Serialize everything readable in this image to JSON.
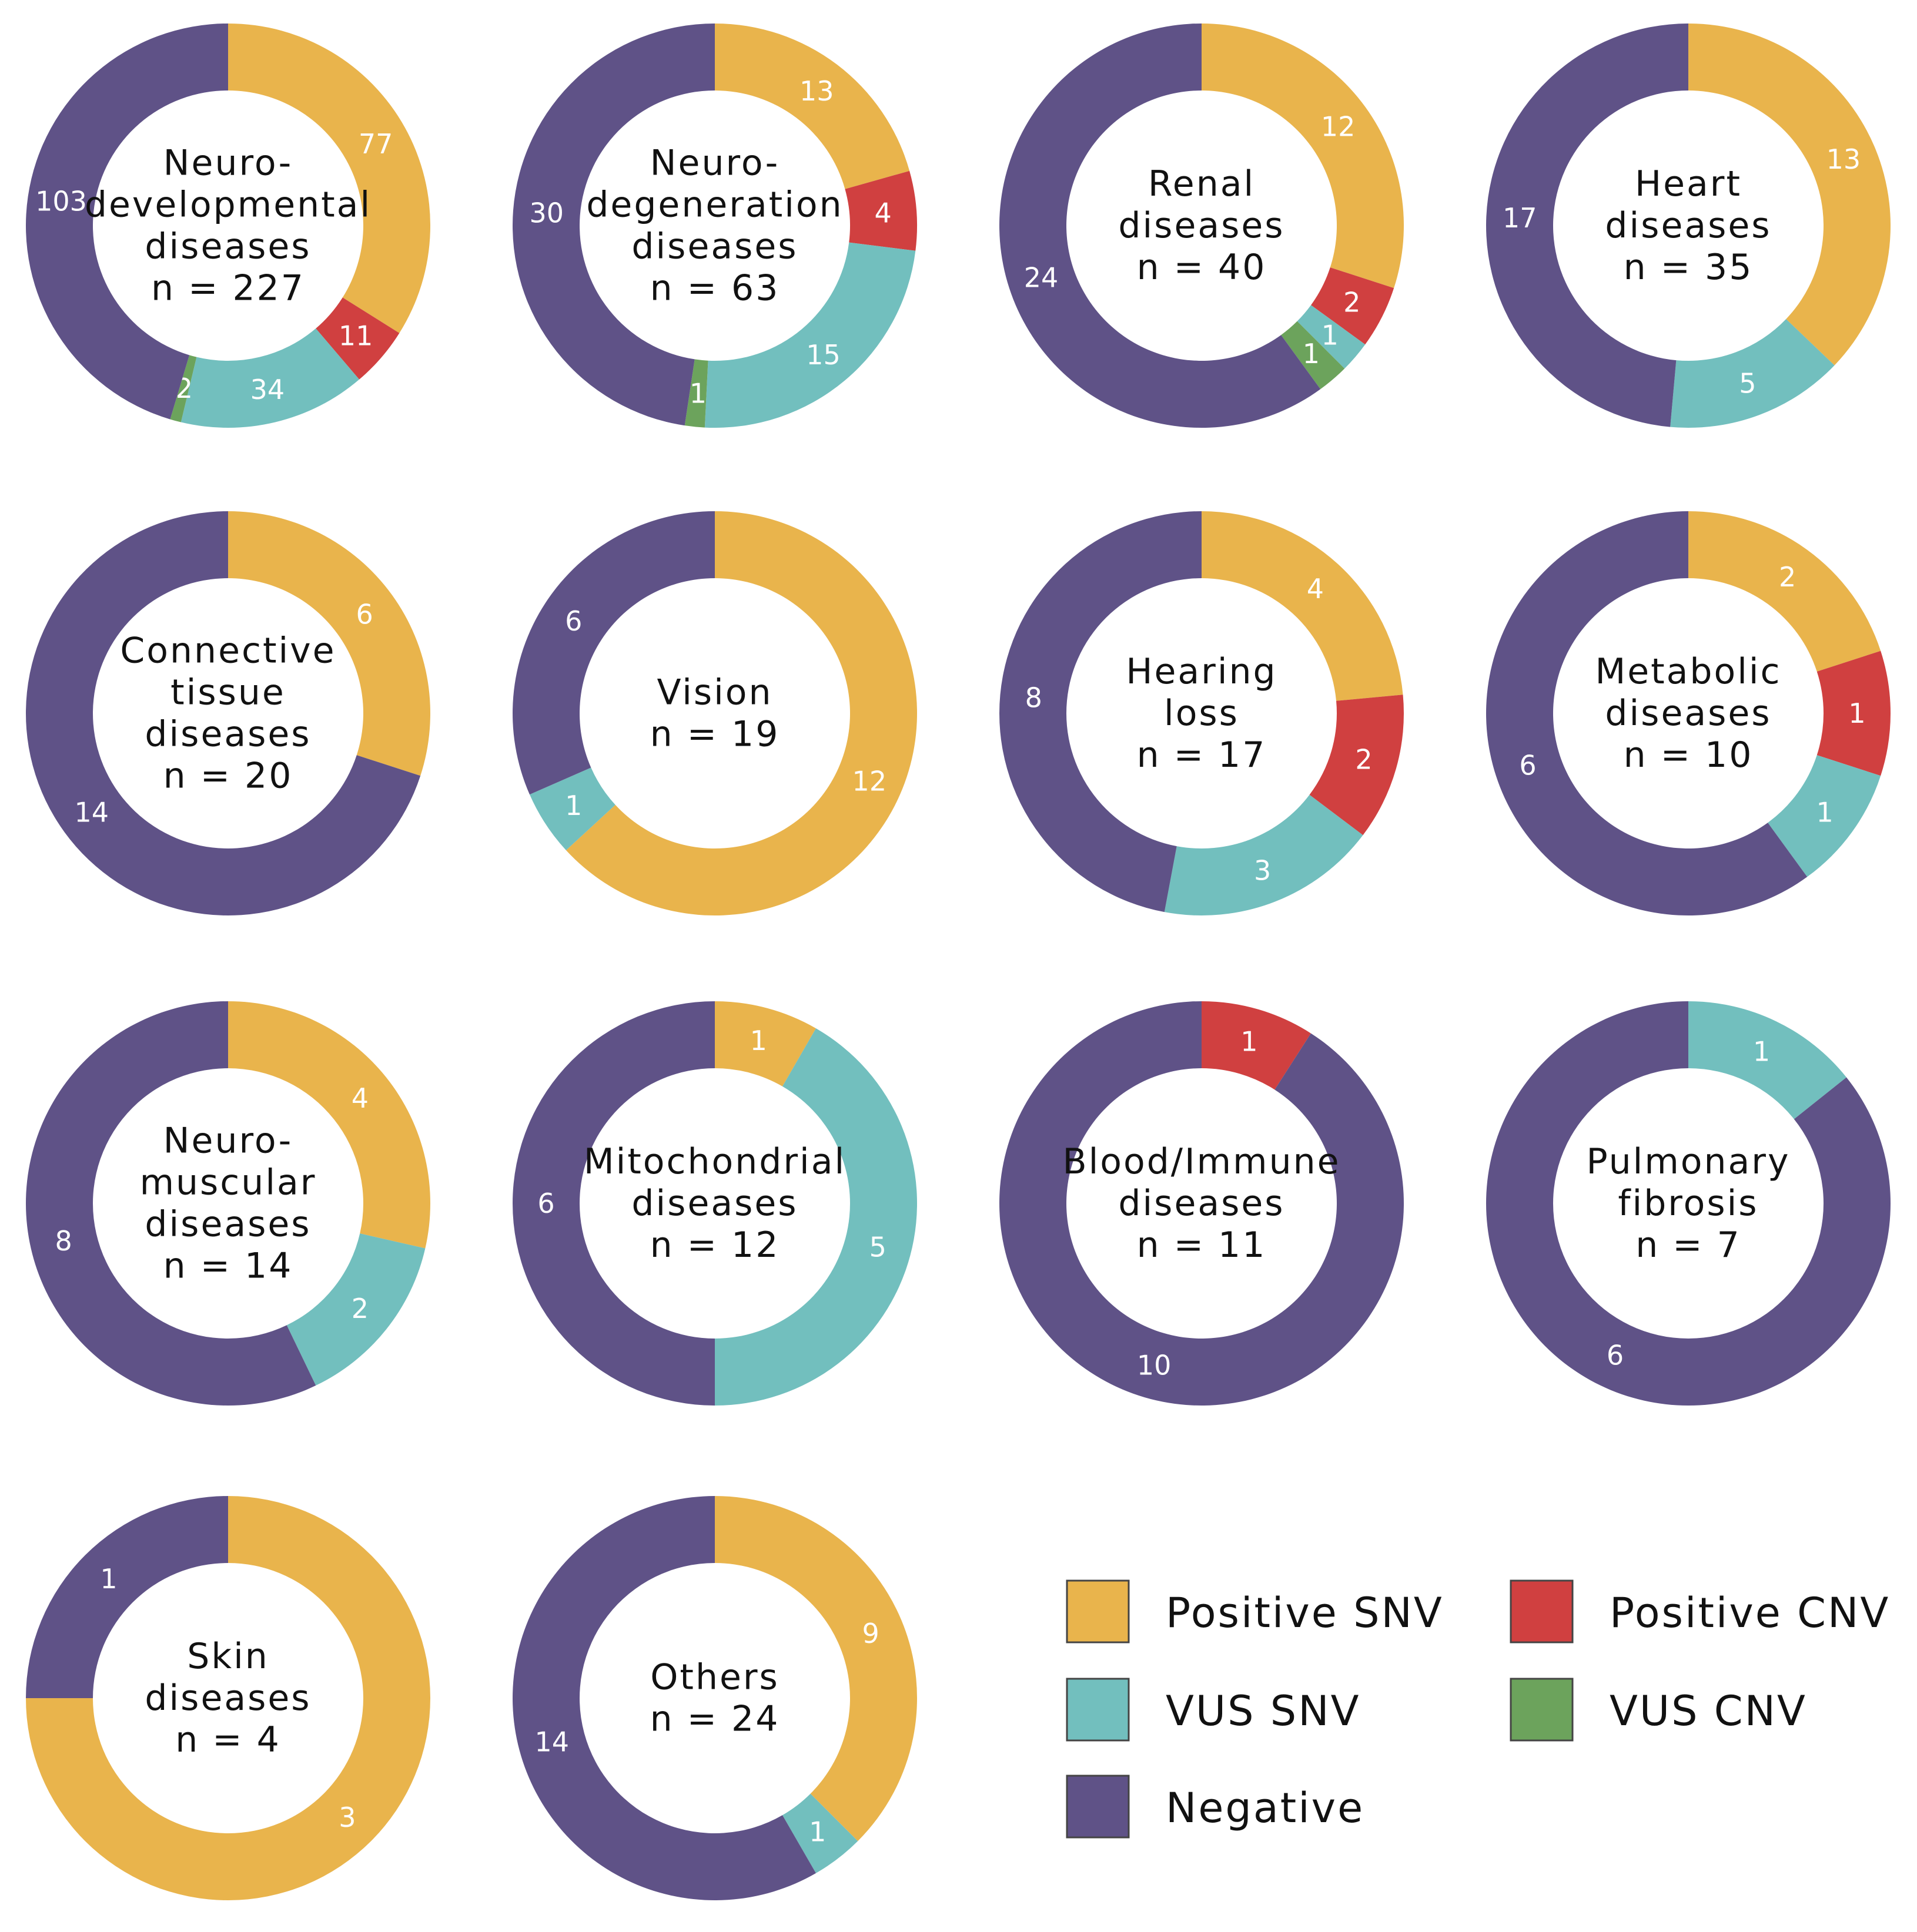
{
  "colors": {
    "positive_snv": "#E9B44C",
    "positive_cnv": "#D04040",
    "vus_snv": "#72BFBE",
    "vus_cnv": "#6CA35C",
    "negative": "#5F5287"
  },
  "chart_data": [
    {
      "type": "pie",
      "title_lines": [
        "Neuro-",
        "developmental",
        "diseases",
        "n = 227"
      ],
      "slices": [
        {
          "category": "Positive SNV",
          "value": 77
        },
        {
          "category": "Positive CNV",
          "value": 11
        },
        {
          "category": "VUS SNV",
          "value": 34
        },
        {
          "category": "VUS CNV",
          "value": 2
        },
        {
          "category": "Negative",
          "value": 103
        }
      ]
    },
    {
      "type": "pie",
      "title_lines": [
        "Neuro-",
        "degeneration",
        "diseases",
        "n = 63"
      ],
      "slices": [
        {
          "category": "Positive SNV",
          "value": 13
        },
        {
          "category": "Positive CNV",
          "value": 4
        },
        {
          "category": "VUS SNV",
          "value": 15
        },
        {
          "category": "VUS CNV",
          "value": 1
        },
        {
          "category": "Negative",
          "value": 30
        }
      ]
    },
    {
      "type": "pie",
      "title_lines": [
        "Renal",
        "diseases",
        "n = 40"
      ],
      "slices": [
        {
          "category": "Positive SNV",
          "value": 12
        },
        {
          "category": "Positive CNV",
          "value": 2
        },
        {
          "category": "VUS SNV",
          "value": 1
        },
        {
          "category": "VUS CNV",
          "value": 1
        },
        {
          "category": "Negative",
          "value": 24
        }
      ]
    },
    {
      "type": "pie",
      "title_lines": [
        "Heart",
        "diseases",
        "n = 35"
      ],
      "slices": [
        {
          "category": "Positive SNV",
          "value": 13
        },
        {
          "category": "VUS SNV",
          "value": 5
        },
        {
          "category": "Negative",
          "value": 17
        }
      ]
    },
    {
      "type": "pie",
      "title_lines": [
        "Connective",
        "tissue",
        "diseases",
        "n = 20"
      ],
      "slices": [
        {
          "category": "Positive SNV",
          "value": 6
        },
        {
          "category": "Negative",
          "value": 14
        }
      ]
    },
    {
      "type": "pie",
      "title_lines": [
        "Vision",
        "n = 19"
      ],
      "slices": [
        {
          "category": "Positive SNV",
          "value": 12
        },
        {
          "category": "VUS SNV",
          "value": 1
        },
        {
          "category": "Negative",
          "value": 6
        }
      ]
    },
    {
      "type": "pie",
      "title_lines": [
        "Hearing",
        "loss",
        "n = 17"
      ],
      "slices": [
        {
          "category": "Positive SNV",
          "value": 4
        },
        {
          "category": "Positive CNV",
          "value": 2
        },
        {
          "category": "VUS SNV",
          "value": 3
        },
        {
          "category": "Negative",
          "value": 8
        }
      ]
    },
    {
      "type": "pie",
      "title_lines": [
        "Metabolic",
        "diseases",
        "n = 10"
      ],
      "slices": [
        {
          "category": "Positive SNV",
          "value": 2
        },
        {
          "category": "Positive CNV",
          "value": 1
        },
        {
          "category": "VUS SNV",
          "value": 1
        },
        {
          "category": "Negative",
          "value": 6
        }
      ]
    },
    {
      "type": "pie",
      "title_lines": [
        "Neuro-",
        "muscular",
        "diseases",
        "n = 14"
      ],
      "slices": [
        {
          "category": "Positive SNV",
          "value": 4
        },
        {
          "category": "VUS SNV",
          "value": 2
        },
        {
          "category": "Negative",
          "value": 8
        }
      ]
    },
    {
      "type": "pie",
      "title_lines": [
        "Mitochondrial",
        "diseases",
        "n = 12"
      ],
      "slices": [
        {
          "category": "Positive SNV",
          "value": 1
        },
        {
          "category": "VUS SNV",
          "value": 5
        },
        {
          "category": "Negative",
          "value": 6
        }
      ]
    },
    {
      "type": "pie",
      "title_lines": [
        "Blood/Immune",
        "diseases",
        "n = 11"
      ],
      "slices": [
        {
          "category": "Positive CNV",
          "value": 1
        },
        {
          "category": "Negative",
          "value": 10
        }
      ]
    },
    {
      "type": "pie",
      "title_lines": [
        "Pulmonary",
        "fibrosis",
        "n = 7"
      ],
      "slices": [
        {
          "category": "VUS SNV",
          "value": 1
        },
        {
          "category": "Negative",
          "value": 6
        }
      ]
    },
    {
      "type": "pie",
      "title_lines": [
        "Skin",
        "diseases",
        "n = 4"
      ],
      "slices": [
        {
          "category": "Positive SNV",
          "value": 3
        },
        {
          "category": "Negative",
          "value": 1
        }
      ]
    },
    {
      "type": "pie",
      "title_lines": [
        "Others",
        "n = 24"
      ],
      "slices": [
        {
          "category": "Positive SNV",
          "value": 9
        },
        {
          "category": "VUS SNV",
          "value": 1
        },
        {
          "category": "Negative",
          "value": 14
        }
      ]
    }
  ],
  "legend": [
    {
      "label": "Positive SNV",
      "color_key": "positive_snv"
    },
    {
      "label": "Positive CNV",
      "color_key": "positive_cnv"
    },
    {
      "label": "VUS SNV",
      "color_key": "vus_snv"
    },
    {
      "label": "VUS CNV",
      "color_key": "vus_cnv"
    },
    {
      "label": "Negative",
      "color_key": "negative"
    }
  ]
}
